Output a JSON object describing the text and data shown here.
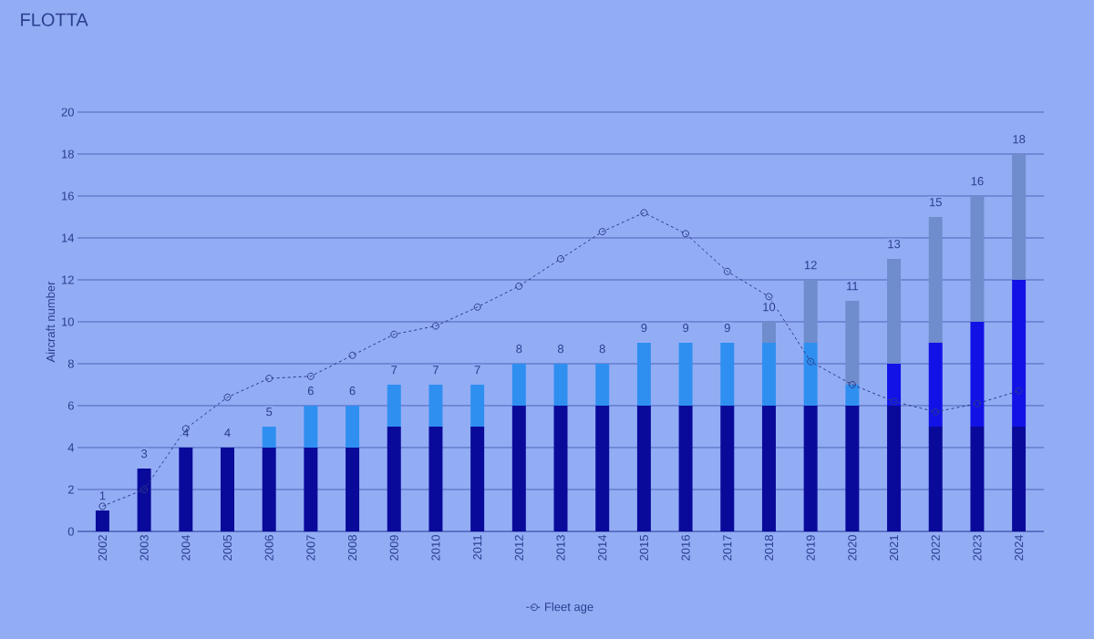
{
  "chart_data": {
    "type": "bar",
    "title": "FLOTTA",
    "ylabel": "Aircraft number",
    "stacked": true,
    "grid": "y",
    "legend": "bottom",
    "categories": [
      "2002",
      "2003",
      "2004",
      "2005",
      "2006",
      "2007",
      "2008",
      "2009",
      "2010",
      "2011",
      "2012",
      "2013",
      "2014",
      "2015",
      "2016",
      "2017",
      "2018",
      "2019",
      "2020",
      "2021",
      "2022",
      "2023",
      "2024"
    ],
    "ylim": [
      0,
      20
    ],
    "yticks": [
      0,
      2,
      4,
      6,
      8,
      10,
      12,
      14,
      16,
      18,
      20
    ],
    "series": [
      {
        "color": "#0a0a9a",
        "values": [
          1,
          3,
          4,
          4,
          4,
          4,
          4,
          5,
          5,
          5,
          6,
          6,
          6,
          6,
          6,
          6,
          6,
          6,
          6,
          6,
          5,
          5,
          5
        ]
      },
      {
        "color": "#1212e6",
        "values": [
          0,
          0,
          0,
          0,
          0,
          0,
          0,
          0,
          0,
          0,
          0,
          0,
          0,
          0,
          0,
          0,
          0,
          0,
          0,
          2,
          4,
          5,
          7
        ]
      },
      {
        "color": "#2f8ff0",
        "values": [
          0,
          0,
          0,
          0,
          1,
          2,
          2,
          2,
          2,
          2,
          2,
          2,
          2,
          3,
          3,
          3,
          3,
          3,
          1,
          0,
          0,
          0,
          0
        ]
      },
      {
        "color": "#6f8ccc",
        "values": [
          0,
          0,
          0,
          0,
          0,
          0,
          0,
          0,
          0,
          0,
          0,
          0,
          0,
          0,
          0,
          0,
          1,
          3,
          4,
          5,
          6,
          6,
          6
        ]
      },
      {
        "name": "Fleet age",
        "type": "line",
        "color": "#2a3a8a",
        "marker": "circle",
        "line_style": "dashed",
        "values": [
          1.2,
          2.0,
          4.9,
          6.4,
          7.3,
          7.4,
          8.4,
          9.4,
          9.8,
          10.7,
          11.7,
          13.0,
          14.3,
          15.2,
          14.2,
          12.4,
          11.2,
          8.1,
          7.0,
          6.2,
          5.7,
          6.1,
          6.7
        ]
      }
    ],
    "totals": [
      "1",
      "3",
      "4",
      "4",
      "5",
      "6",
      "6",
      "7",
      "7",
      "7",
      "8",
      "8",
      "8",
      "9",
      "9",
      "9",
      "10",
      "12",
      "11",
      "13",
      "15",
      "16",
      "18"
    ]
  }
}
